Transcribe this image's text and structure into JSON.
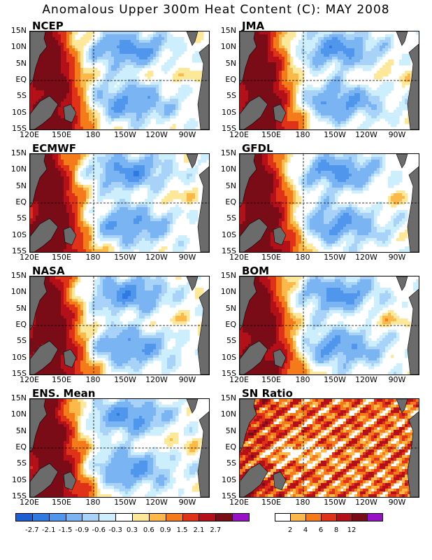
{
  "title": "Anomalous Upper 300m Heat Content (C): MAY 2008",
  "lat_labels": [
    "15N",
    "10N",
    "5N",
    "EQ",
    "5S",
    "10S",
    "15S"
  ],
  "lon_labels": [
    "120E",
    "150E",
    "180",
    "150W",
    "120W",
    "90W"
  ],
  "chart_data": [
    {
      "type": "heatmap",
      "name": "NCEP",
      "field": "anomaly",
      "seed": 1
    },
    {
      "type": "heatmap",
      "name": "JMA",
      "field": "anomaly",
      "seed": 2
    },
    {
      "type": "heatmap",
      "name": "ECMWF",
      "field": "anomaly",
      "seed": 3
    },
    {
      "type": "heatmap",
      "name": "GFDL",
      "field": "anomaly",
      "seed": 4
    },
    {
      "type": "heatmap",
      "name": "NASA",
      "field": "anomaly",
      "seed": 5
    },
    {
      "type": "heatmap",
      "name": "BOM",
      "field": "anomaly",
      "seed": 6
    },
    {
      "type": "heatmap",
      "name": "ENS. Mean",
      "field": "anomaly",
      "seed": 7
    },
    {
      "type": "heatmap",
      "name": "SN Ratio",
      "field": "snr",
      "seed": 8
    }
  ],
  "anomaly_colorbar": {
    "levels": [
      "-2.7",
      "-2.1",
      "-1.5",
      "-0.9",
      "-0.6",
      "-0.3",
      "0.3",
      "0.6",
      "0.9",
      "1.5",
      "2.1",
      "2.7"
    ],
    "colors": [
      "#1c5fd0",
      "#2f7ae0",
      "#4f96ec",
      "#7ab4f2",
      "#a8d2f7",
      "#cdeefc",
      "#ffffff",
      "#fde89a",
      "#fdb84a",
      "#f57b1a",
      "#e03218",
      "#b4101a",
      "#7a0c18",
      "#9a10c8"
    ]
  },
  "snr_colorbar": {
    "levels": [
      "2",
      "4",
      "6",
      "8",
      "12"
    ],
    "colors": [
      "#ffffff",
      "#fdb84a",
      "#f57b1a",
      "#e03218",
      "#b4101a",
      "#7a0c18",
      "#9a10c8"
    ]
  },
  "land_color": "#6b6b6b"
}
